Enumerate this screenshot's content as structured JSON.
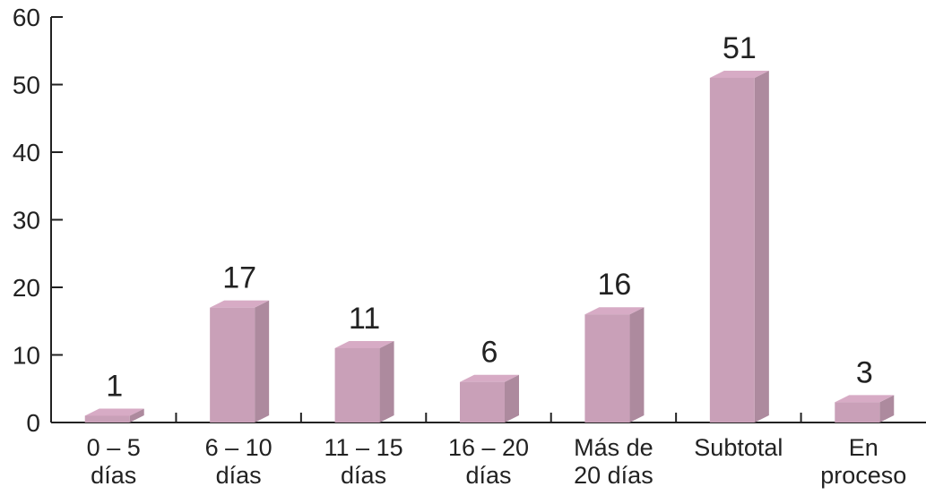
{
  "chart_data": {
    "type": "bar3d",
    "categories": [
      "0 – 5\ndías",
      "6 – 10\ndías",
      "11 – 15\ndías",
      "16 – 20\ndías",
      "Más de\n20 días",
      "Subtotal",
      "En\nproceso"
    ],
    "values": [
      1,
      17,
      11,
      6,
      16,
      51,
      3
    ],
    "color": "#c9a0b8",
    "ylim": [
      0,
      60
    ],
    "yticks": [
      0,
      10,
      20,
      30,
      40,
      50,
      60
    ]
  }
}
